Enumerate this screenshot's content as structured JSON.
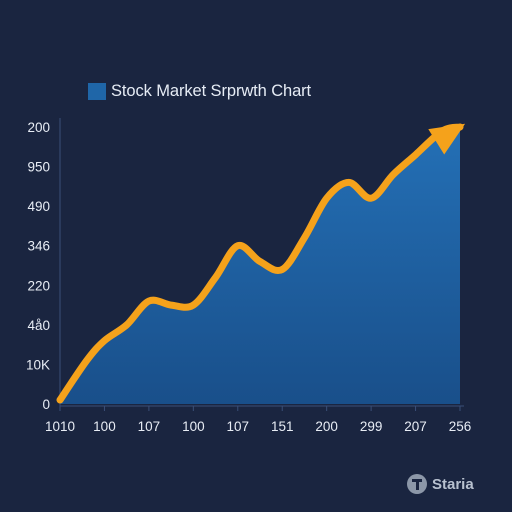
{
  "chart_data": {
    "type": "area",
    "title": "",
    "xlabel": "",
    "ylabel": "",
    "legend": {
      "label": "Stock Market Srprwth Chart",
      "placement": "top-left"
    },
    "x_tick_labels": [
      "1010",
      "100",
      "107",
      "100",
      "107",
      "151",
      "200",
      "299",
      "207",
      "256"
    ],
    "y_tick_labels": [
      "0",
      "10K",
      "4å0",
      "220",
      "346",
      "490",
      "950",
      "200"
    ],
    "ylim": [
      0,
      7
    ],
    "y_note": "y values are expressed in tick-index units because the printed tick labels are not monotonic",
    "series": [
      {
        "x": [
          0,
          0.6,
          1.0,
          1.5,
          2.0,
          2.5,
          3.0,
          3.5,
          4.0,
          4.5,
          5.0,
          5.5,
          6.0,
          6.5,
          7.0,
          7.5,
          8.0,
          8.6,
          9.0
        ],
        "y": [
          0.1,
          1.1,
          1.6,
          2.0,
          2.6,
          2.5,
          2.5,
          3.2,
          4.0,
          3.6,
          3.4,
          4.2,
          5.2,
          5.6,
          5.2,
          5.8,
          6.3,
          6.9,
          7.0
        ]
      }
    ],
    "colors": {
      "fill": "#1f66a8",
      "line": "#f5a21b",
      "background": "#1a2540",
      "axis": "#3a4f78"
    },
    "grid": false,
    "end_arrow": true
  },
  "watermark": {
    "text": "Staria",
    "icon": "staria-logo-icon"
  }
}
